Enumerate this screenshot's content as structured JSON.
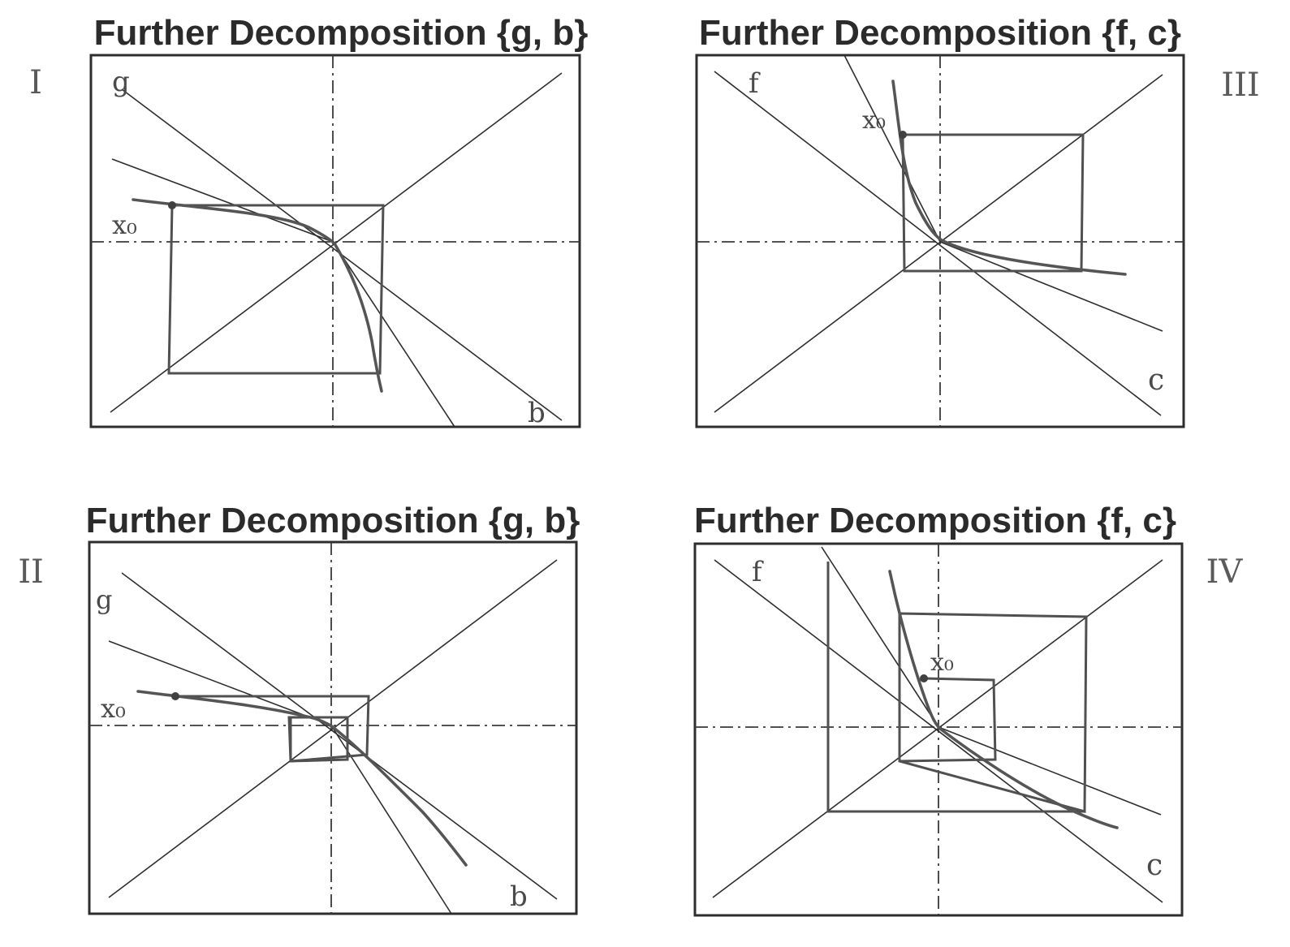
{
  "panels": [
    {
      "id": "I",
      "title": "Further Decomposition {g, b}",
      "roman": "I",
      "line_labels": [
        "g",
        "b"
      ],
      "point_label": "x₀"
    },
    {
      "id": "III",
      "title": "Further Decomposition {f, c}",
      "roman": "III",
      "line_labels": [
        "f",
        "c"
      ],
      "point_label": "x₀"
    },
    {
      "id": "II",
      "title": "Further Decomposition {g, b}",
      "roman": "II",
      "line_labels": [
        "g",
        "b"
      ],
      "point_label": "x₀"
    },
    {
      "id": "IV",
      "title": "Further Decomposition {f, c}",
      "roman": "IV",
      "line_labels": [
        "f",
        "c"
      ],
      "point_label": "x₀"
    }
  ],
  "colors": {
    "ink": "#2e2e2e",
    "curve": "#555555",
    "paper": "#ffffff"
  }
}
